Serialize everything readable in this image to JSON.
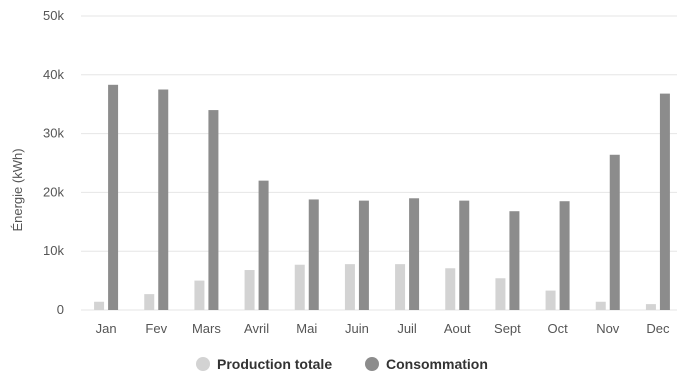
{
  "chart_data": {
    "type": "bar",
    "categories": [
      "Jan",
      "Fev",
      "Mars",
      "Avril",
      "Mai",
      "Juin",
      "Juil",
      "Aout",
      "Sept",
      "Oct",
      "Nov",
      "Dec"
    ],
    "series": [
      {
        "name": "Production totale",
        "color": "#d3d3d3",
        "values": [
          1400,
          2700,
          5000,
          6800,
          7700,
          7800,
          7800,
          7100,
          5400,
          3300,
          1400,
          1000
        ]
      },
      {
        "name": "Consommation",
        "color": "#8c8c8c",
        "values": [
          38300,
          37500,
          34000,
          22000,
          18800,
          18600,
          19000,
          18600,
          16800,
          18500,
          26400,
          36800
        ]
      }
    ],
    "title": "",
    "xlabel": "",
    "ylabel": "Énergie (kWh)",
    "ylim": [
      0,
      50000
    ],
    "yticks": [
      "0",
      "10k",
      "20k",
      "30k",
      "40k",
      "50k"
    ],
    "grid": true,
    "legend": "bottom-center"
  }
}
